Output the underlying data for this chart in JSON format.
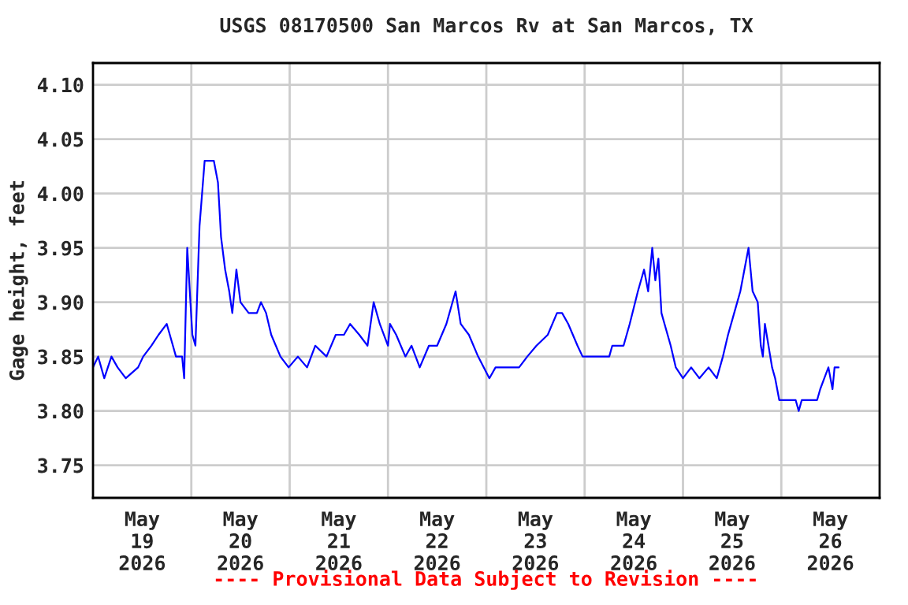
{
  "chart_data": {
    "type": "line",
    "title": "USGS 08170500 San Marcos Rv at San Marcos, TX",
    "ylabel": "Gage height, feet",
    "annotations": [
      "---- Provisional Data Subject to Revision ----"
    ],
    "x": [
      "2026-05-19T00:00",
      "2026-05-19T01:15",
      "2026-05-19T02:45",
      "2026-05-19T04:30",
      "2026-05-19T06:00",
      "2026-05-19T08:00",
      "2026-05-19T11:00",
      "2026-05-19T12:15",
      "2026-05-19T14:15",
      "2026-05-19T16:00",
      "2026-05-19T18:00",
      "2026-05-19T19:30",
      "2026-05-19T20:15",
      "2026-05-19T21:45",
      "2026-05-19T22:15",
      "2026-05-19T23:00",
      "2026-05-20T00:15",
      "2026-05-20T01:00",
      "2026-05-20T02:00",
      "2026-05-20T03:15",
      "2026-05-20T05:30",
      "2026-05-20T06:30",
      "2026-05-20T07:15",
      "2026-05-20T08:15",
      "2026-05-20T09:15",
      "2026-05-20T10:00",
      "2026-05-20T11:00",
      "2026-05-20T12:00",
      "2026-05-20T14:00",
      "2026-05-20T16:00",
      "2026-05-20T17:00",
      "2026-05-20T18:15",
      "2026-05-20T19:30",
      "2026-05-20T21:45",
      "2026-05-20T23:45",
      "2026-05-21T02:00",
      "2026-05-21T04:15",
      "2026-05-21T06:15",
      "2026-05-21T09:00",
      "2026-05-21T11:15",
      "2026-05-21T13:15",
      "2026-05-21T14:45",
      "2026-05-21T17:00",
      "2026-05-21T19:00",
      "2026-05-21T20:30",
      "2026-05-21T22:00",
      "2026-05-22T00:00",
      "2026-05-22T00:30",
      "2026-05-22T02:00",
      "2026-05-22T04:15",
      "2026-05-22T05:45",
      "2026-05-22T07:45",
      "2026-05-22T10:00",
      "2026-05-22T12:00",
      "2026-05-22T14:15",
      "2026-05-22T16:30",
      "2026-05-22T17:45",
      "2026-05-22T19:45",
      "2026-05-22T22:00",
      "2026-05-23T00:45",
      "2026-05-23T02:15",
      "2026-05-23T05:00",
      "2026-05-23T08:00",
      "2026-05-23T10:00",
      "2026-05-23T12:15",
      "2026-05-23T15:00",
      "2026-05-23T17:15",
      "2026-05-23T18:30",
      "2026-05-23T20:00",
      "2026-05-23T22:15",
      "2026-05-23T23:30",
      "2026-05-24T06:00",
      "2026-05-24T06:45",
      "2026-05-24T09:30",
      "2026-05-24T11:00",
      "2026-05-24T13:00",
      "2026-05-24T14:30",
      "2026-05-24T15:30",
      "2026-05-24T16:30",
      "2026-05-24T17:15",
      "2026-05-24T18:00",
      "2026-05-24T18:45",
      "2026-05-24T19:30",
      "2026-05-24T21:00",
      "2026-05-24T22:15",
      "2026-05-25T00:00",
      "2026-05-25T02:00",
      "2026-05-25T04:00",
      "2026-05-25T06:15",
      "2026-05-25T08:15",
      "2026-05-25T09:45",
      "2026-05-25T11:00",
      "2026-05-25T12:30",
      "2026-05-25T14:00",
      "2026-05-25T15:00",
      "2026-05-25T16:00",
      "2026-05-25T17:00",
      "2026-05-25T18:15",
      "2026-05-25T19:00",
      "2026-05-25T19:30",
      "2026-05-25T20:00",
      "2026-05-25T21:45",
      "2026-05-25T22:30",
      "2026-05-25T23:30",
      "2026-05-26T03:30",
      "2026-05-26T04:15",
      "2026-05-26T05:00",
      "2026-05-26T08:45",
      "2026-05-26T09:30",
      "2026-05-26T10:30",
      "2026-05-26T11:30",
      "2026-05-26T12:30",
      "2026-05-26T13:00",
      "2026-05-26T14:00"
    ],
    "series": [
      {
        "color": "#0000ff",
        "values": [
          3.84,
          3.85,
          3.83,
          3.85,
          3.84,
          3.83,
          3.84,
          3.85,
          3.86,
          3.87,
          3.88,
          3.86,
          3.85,
          3.85,
          3.83,
          3.95,
          3.87,
          3.86,
          3.97,
          4.03,
          4.03,
          4.01,
          3.96,
          3.93,
          3.91,
          3.89,
          3.93,
          3.9,
          3.89,
          3.89,
          3.9,
          3.89,
          3.87,
          3.85,
          3.84,
          3.85,
          3.84,
          3.86,
          3.85,
          3.87,
          3.87,
          3.88,
          3.87,
          3.86,
          3.9,
          3.88,
          3.86,
          3.88,
          3.87,
          3.85,
          3.86,
          3.84,
          3.86,
          3.86,
          3.88,
          3.91,
          3.88,
          3.87,
          3.85,
          3.83,
          3.84,
          3.84,
          3.84,
          3.85,
          3.86,
          3.87,
          3.89,
          3.89,
          3.88,
          3.86,
          3.85,
          3.85,
          3.86,
          3.86,
          3.88,
          3.91,
          3.93,
          3.91,
          3.95,
          3.92,
          3.94,
          3.89,
          3.88,
          3.86,
          3.84,
          3.83,
          3.84,
          3.83,
          3.84,
          3.83,
          3.85,
          3.87,
          3.89,
          3.91,
          3.93,
          3.95,
          3.91,
          3.9,
          3.86,
          3.85,
          3.88,
          3.84,
          3.83,
          3.81,
          3.81,
          3.8,
          3.81,
          3.81,
          3.82,
          3.83,
          3.84,
          3.82,
          3.84,
          3.84
        ]
      }
    ],
    "xlim": [
      "2026-05-19T00:00",
      "2026-05-27T00:00"
    ],
    "xticks": [
      {
        "value": "2026-05-19T12:00",
        "label": "May\n19\n2026"
      },
      {
        "value": "2026-05-20T00:00",
        "label": null
      },
      {
        "value": "2026-05-20T12:00",
        "label": "May\n20\n2026"
      },
      {
        "value": "2026-05-21T00:00",
        "label": null
      },
      {
        "value": "2026-05-21T12:00",
        "label": "May\n21\n2026"
      },
      {
        "value": "2026-05-22T00:00",
        "label": null
      },
      {
        "value": "2026-05-22T12:00",
        "label": "May\n22\n2026"
      },
      {
        "value": "2026-05-23T00:00",
        "label": null
      },
      {
        "value": "2026-05-23T12:00",
        "label": "May\n23\n2026"
      },
      {
        "value": "2026-05-24T00:00",
        "label": null
      },
      {
        "value": "2026-05-24T12:00",
        "label": "May\n24\n2026"
      },
      {
        "value": "2026-05-25T00:00",
        "label": null
      },
      {
        "value": "2026-05-25T12:00",
        "label": "May\n25\n2026"
      },
      {
        "value": "2026-05-26T00:00",
        "label": null
      },
      {
        "value": "2026-05-26T12:00",
        "label": "May\n26\n2026"
      }
    ],
    "ylim": [
      3.72,
      4.12
    ],
    "yticks": [
      {
        "value": 3.75,
        "label": "3.75"
      },
      {
        "value": 3.8,
        "label": "3.80"
      },
      {
        "value": 3.85,
        "label": "3.85"
      },
      {
        "value": 3.9,
        "label": "3.90"
      },
      {
        "value": 3.95,
        "label": "3.95"
      },
      {
        "value": 4.0,
        "label": "4.00"
      },
      {
        "value": 4.05,
        "label": "4.05"
      },
      {
        "value": 4.1,
        "label": "4.10"
      }
    ],
    "grid": true,
    "legend": false,
    "marker": "none",
    "line_style": "solid"
  }
}
